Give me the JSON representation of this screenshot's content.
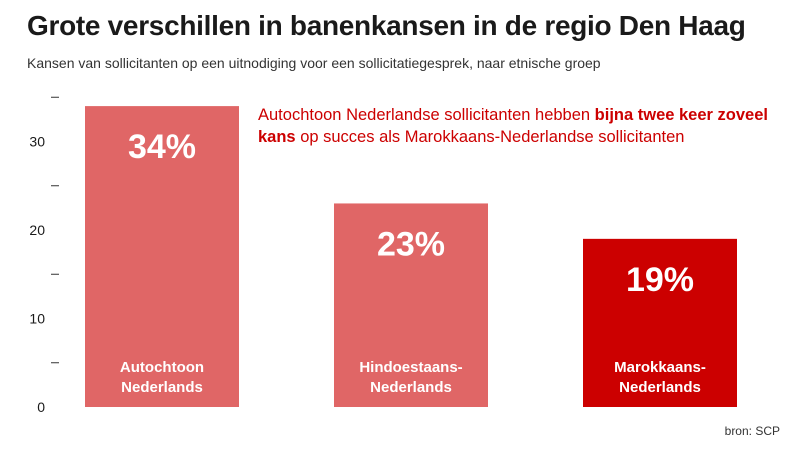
{
  "title": "Grote verschillen in banenkansen in de regio Den Haag",
  "subtitle": "Kansen van sollicitanten op een uitnodiging voor een sollicitatiegesprek, naar etnische groep",
  "annotation": {
    "part1": "Autochtoon Nederlandse sollicitanten hebben ",
    "bold": "bijna twee keer zoveel kans",
    "part2": " op succes als Marokkaans-Nederlandse sollicitanten"
  },
  "source": "bron: SCP",
  "colors": {
    "bar_light": "#e06666",
    "bar_highlight": "#cc0000",
    "annotation": "#cc0000",
    "axis_text": "#1a1a1a"
  },
  "chart_data": {
    "type": "bar",
    "categories": [
      [
        "Autochtoon",
        "Nederlands"
      ],
      [
        "Hindoestaans-",
        "Nederlands"
      ],
      [
        "Marokkaans-",
        "Nederlands"
      ]
    ],
    "values": [
      34,
      23,
      19
    ],
    "value_labels": [
      "34%",
      "23%",
      "19%"
    ],
    "highlight_index": 2,
    "ylim": [
      0,
      35
    ],
    "yticks": [
      0,
      10,
      20,
      30
    ],
    "minor_ticks": [
      5,
      15,
      25,
      35
    ],
    "xlabel": "",
    "ylabel": "",
    "grid": false
  }
}
